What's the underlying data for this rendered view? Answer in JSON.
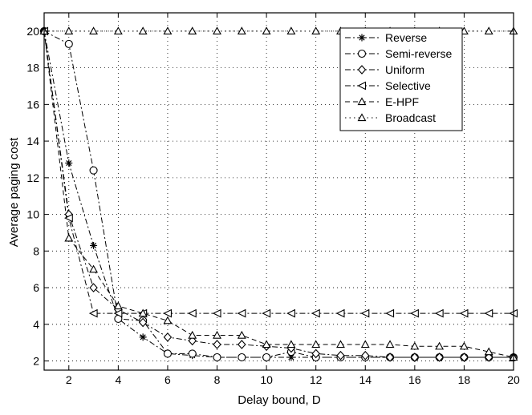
{
  "chart_data": {
    "type": "line",
    "title": "",
    "xlabel": "Delay bound, D",
    "ylabel": "Average paging cost",
    "xlim": [
      1,
      20
    ],
    "ylim": [
      1.5,
      21
    ],
    "xticks": [
      2,
      4,
      6,
      8,
      10,
      12,
      14,
      16,
      18,
      20
    ],
    "yticks": [
      2,
      4,
      6,
      8,
      10,
      12,
      14,
      16,
      18,
      20
    ],
    "grid": true,
    "legend_position": "top-right",
    "x": [
      1,
      2,
      3,
      4,
      5,
      6,
      7,
      8,
      9,
      10,
      11,
      12,
      13,
      14,
      15,
      16,
      17,
      18,
      19,
      20
    ],
    "series": [
      {
        "name": "Reverse",
        "marker": "asterisk",
        "dash": "dashdot",
        "values": [
          20,
          12.8,
          8.3,
          4.3,
          3.3,
          2.4,
          2.3,
          2.2,
          2.2,
          2.2,
          2.2,
          2.2,
          2.2,
          2.2,
          2.2,
          2.2,
          2.2,
          2.2,
          2.2,
          2.2
        ]
      },
      {
        "name": "Semi-reverse",
        "marker": "circle",
        "dash": "dashdot",
        "values": [
          20,
          19.3,
          12.4,
          4.3,
          4.2,
          2.4,
          2.4,
          2.2,
          2.2,
          2.2,
          2.5,
          2.2,
          2.2,
          2.2,
          2.2,
          2.2,
          2.2,
          2.2,
          2.2,
          2.2
        ]
      },
      {
        "name": "Uniform",
        "marker": "diamond",
        "dash": "dashdot",
        "values": [
          20,
          10,
          6,
          4.8,
          4.1,
          3.3,
          3.1,
          2.9,
          2.9,
          2.8,
          2.7,
          2.4,
          2.3,
          2.3,
          2.2,
          2.2,
          2.2,
          2.2,
          2.2,
          2.2
        ]
      },
      {
        "name": "Selective",
        "marker": "triangle-left",
        "dash": "dashdot",
        "values": [
          20,
          9.8,
          4.6,
          4.6,
          4.6,
          4.6,
          4.6,
          4.6,
          4.6,
          4.6,
          4.6,
          4.6,
          4.6,
          4.6,
          4.6,
          4.6,
          4.6,
          4.6,
          4.6,
          4.6
        ]
      },
      {
        "name": "E-HPF",
        "marker": "triangle-up",
        "dash": "dashed",
        "values": [
          20,
          8.7,
          7,
          5,
          4.6,
          4.2,
          3.4,
          3.4,
          3.4,
          2.9,
          2.9,
          2.9,
          2.9,
          2.9,
          2.9,
          2.8,
          2.8,
          2.8,
          2.5,
          2.2
        ]
      },
      {
        "name": "Broadcast",
        "marker": "triangle-up",
        "dash": "dotted",
        "values": [
          20,
          20,
          20,
          20,
          20,
          20,
          20,
          20,
          20,
          20,
          20,
          20,
          20,
          20,
          20,
          20,
          20,
          20,
          20,
          20
        ]
      }
    ]
  }
}
